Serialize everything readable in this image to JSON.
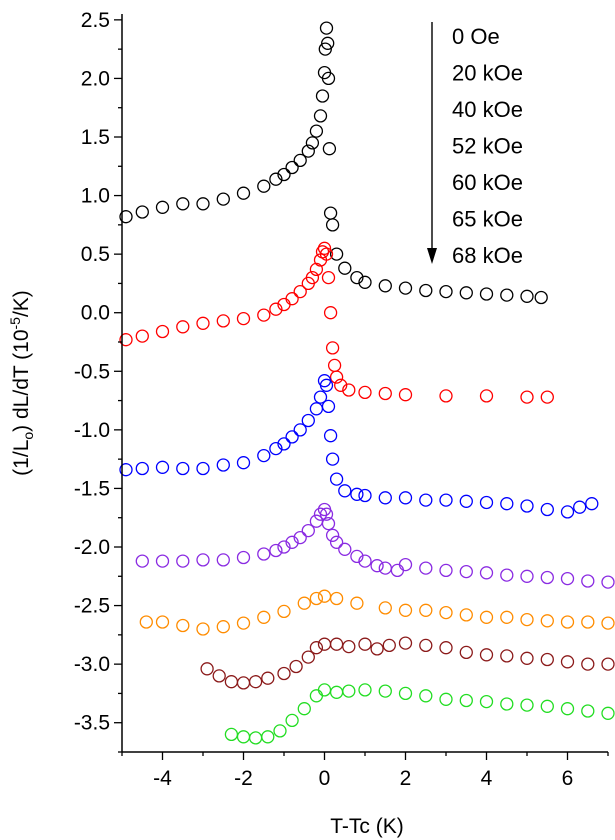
{
  "chart_data": {
    "type": "scatter",
    "xlabel": "T-Tc (K)",
    "ylabel": {
      "prefix": "(1/L",
      "sub": "o",
      "mid": ") dL/dT (10",
      "sup": "-5",
      "suffix": "/K)"
    },
    "xlim": [
      -5,
      7
    ],
    "ylim": [
      -3.75,
      2.55
    ],
    "xticks": [
      -4,
      -2,
      0,
      2,
      4,
      6
    ],
    "xtick_labels": [
      "-4",
      "-2",
      "0",
      "2",
      "4",
      "6"
    ],
    "yticks": [
      -3.5,
      -3.0,
      -2.5,
      -2.0,
      -1.5,
      -1.0,
      -0.5,
      0.0,
      0.5,
      1.0,
      1.5,
      2.0,
      2.5
    ],
    "ytick_labels": [
      "-3.5",
      "-3.0",
      "-2.5",
      "-2.0",
      "-1.5",
      "-1.0",
      "-0.5",
      "0.0",
      "0.5",
      "1.0",
      "1.5",
      "2.0",
      "2.5"
    ],
    "marker": "open-circle",
    "legend": {
      "placement": "top-right",
      "arrow": "down"
    },
    "series": [
      {
        "name": "0 Oe",
        "color": "#000000",
        "points": [
          [
            -4.9,
            0.82
          ],
          [
            -4.5,
            0.86
          ],
          [
            -4.0,
            0.9
          ],
          [
            -3.5,
            0.93
          ],
          [
            -3.0,
            0.93
          ],
          [
            -2.5,
            0.97
          ],
          [
            -2.0,
            1.02
          ],
          [
            -1.5,
            1.08
          ],
          [
            -1.2,
            1.14
          ],
          [
            -1.0,
            1.18
          ],
          [
            -0.8,
            1.24
          ],
          [
            -0.6,
            1.3
          ],
          [
            -0.4,
            1.38
          ],
          [
            -0.3,
            1.45
          ],
          [
            -0.2,
            1.55
          ],
          [
            -0.1,
            1.68
          ],
          [
            -0.05,
            1.85
          ],
          [
            0.0,
            2.05
          ],
          [
            0.02,
            2.25
          ],
          [
            0.05,
            2.43
          ],
          [
            0.08,
            2.3
          ],
          [
            0.1,
            2.0
          ],
          [
            0.12,
            1.4
          ],
          [
            0.15,
            0.85
          ],
          [
            0.2,
            0.75
          ],
          [
            0.3,
            0.5
          ],
          [
            0.5,
            0.38
          ],
          [
            0.8,
            0.3
          ],
          [
            1.0,
            0.26
          ],
          [
            1.5,
            0.23
          ],
          [
            2.0,
            0.21
          ],
          [
            2.5,
            0.19
          ],
          [
            3.0,
            0.18
          ],
          [
            3.5,
            0.17
          ],
          [
            4.0,
            0.16
          ],
          [
            4.5,
            0.15
          ],
          [
            5.0,
            0.14
          ],
          [
            5.35,
            0.13
          ]
        ]
      },
      {
        "name": "20 kOe",
        "color": "#ff0000",
        "points": [
          [
            -4.9,
            -0.23
          ],
          [
            -4.5,
            -0.2
          ],
          [
            -4.0,
            -0.16
          ],
          [
            -3.5,
            -0.12
          ],
          [
            -3.0,
            -0.09
          ],
          [
            -2.5,
            -0.07
          ],
          [
            -2.0,
            -0.05
          ],
          [
            -1.5,
            -0.02
          ],
          [
            -1.2,
            0.03
          ],
          [
            -1.0,
            0.07
          ],
          [
            -0.8,
            0.12
          ],
          [
            -0.6,
            0.18
          ],
          [
            -0.4,
            0.25
          ],
          [
            -0.3,
            0.3
          ],
          [
            -0.2,
            0.37
          ],
          [
            -0.1,
            0.45
          ],
          [
            -0.05,
            0.52
          ],
          [
            0.0,
            0.55
          ],
          [
            0.05,
            0.5
          ],
          [
            0.1,
            0.3
          ],
          [
            0.15,
            0.0
          ],
          [
            0.2,
            -0.3
          ],
          [
            0.25,
            -0.45
          ],
          [
            0.3,
            -0.55
          ],
          [
            0.4,
            -0.62
          ],
          [
            0.6,
            -0.66
          ],
          [
            1.0,
            -0.68
          ],
          [
            1.5,
            -0.69
          ],
          [
            2.0,
            -0.7
          ],
          [
            3.0,
            -0.71
          ],
          [
            4.0,
            -0.71
          ],
          [
            5.0,
            -0.72
          ],
          [
            5.5,
            -0.72
          ]
        ]
      },
      {
        "name": "40 kOe",
        "color": "#0000ff",
        "points": [
          [
            -4.9,
            -1.34
          ],
          [
            -4.5,
            -1.33
          ],
          [
            -4.0,
            -1.32
          ],
          [
            -3.5,
            -1.33
          ],
          [
            -3.0,
            -1.33
          ],
          [
            -2.5,
            -1.3
          ],
          [
            -2.0,
            -1.28
          ],
          [
            -1.5,
            -1.22
          ],
          [
            -1.2,
            -1.16
          ],
          [
            -1.0,
            -1.12
          ],
          [
            -0.8,
            -1.06
          ],
          [
            -0.6,
            -1.0
          ],
          [
            -0.4,
            -0.92
          ],
          [
            -0.2,
            -0.82
          ],
          [
            -0.1,
            -0.72
          ],
          [
            0.0,
            -0.58
          ],
          [
            0.05,
            -0.62
          ],
          [
            0.1,
            -0.8
          ],
          [
            0.15,
            -1.05
          ],
          [
            0.2,
            -1.25
          ],
          [
            0.3,
            -1.42
          ],
          [
            0.5,
            -1.52
          ],
          [
            0.8,
            -1.55
          ],
          [
            1.0,
            -1.56
          ],
          [
            1.5,
            -1.58
          ],
          [
            2.0,
            -1.58
          ],
          [
            2.5,
            -1.6
          ],
          [
            3.0,
            -1.6
          ],
          [
            3.5,
            -1.61
          ],
          [
            4.0,
            -1.62
          ],
          [
            4.5,
            -1.63
          ],
          [
            5.0,
            -1.65
          ],
          [
            5.5,
            -1.68
          ],
          [
            6.0,
            -1.7
          ],
          [
            6.3,
            -1.66
          ],
          [
            6.6,
            -1.63
          ]
        ]
      },
      {
        "name": "52 kOe",
        "color": "#8a2be2",
        "points": [
          [
            -4.5,
            -2.12
          ],
          [
            -4.0,
            -2.12
          ],
          [
            -3.5,
            -2.12
          ],
          [
            -3.0,
            -2.11
          ],
          [
            -2.5,
            -2.11
          ],
          [
            -2.0,
            -2.09
          ],
          [
            -1.5,
            -2.06
          ],
          [
            -1.2,
            -2.03
          ],
          [
            -1.0,
            -2.0
          ],
          [
            -0.8,
            -1.96
          ],
          [
            -0.6,
            -1.92
          ],
          [
            -0.4,
            -1.86
          ],
          [
            -0.2,
            -1.78
          ],
          [
            -0.1,
            -1.72
          ],
          [
            0.0,
            -1.68
          ],
          [
            0.05,
            -1.72
          ],
          [
            0.1,
            -1.8
          ],
          [
            0.2,
            -1.9
          ],
          [
            0.3,
            -1.96
          ],
          [
            0.5,
            -2.02
          ],
          [
            0.8,
            -2.08
          ],
          [
            1.0,
            -2.12
          ],
          [
            1.3,
            -2.16
          ],
          [
            1.5,
            -2.18
          ],
          [
            1.8,
            -2.2
          ],
          [
            2.0,
            -2.15
          ],
          [
            2.5,
            -2.18
          ],
          [
            3.0,
            -2.2
          ],
          [
            3.5,
            -2.21
          ],
          [
            4.0,
            -2.22
          ],
          [
            4.5,
            -2.24
          ],
          [
            5.0,
            -2.25
          ],
          [
            5.5,
            -2.26
          ],
          [
            6.0,
            -2.27
          ],
          [
            6.5,
            -2.29
          ],
          [
            7.0,
            -2.3
          ]
        ]
      },
      {
        "name": "60 kOe",
        "color": "#ff8c00",
        "points": [
          [
            -4.4,
            -2.64
          ],
          [
            -4.0,
            -2.64
          ],
          [
            -3.5,
            -2.67
          ],
          [
            -3.0,
            -2.7
          ],
          [
            -2.5,
            -2.68
          ],
          [
            -2.0,
            -2.65
          ],
          [
            -1.5,
            -2.6
          ],
          [
            -1.0,
            -2.55
          ],
          [
            -0.5,
            -2.48
          ],
          [
            -0.2,
            -2.44
          ],
          [
            0.0,
            -2.42
          ],
          [
            0.3,
            -2.44
          ],
          [
            0.8,
            -2.48
          ],
          [
            1.5,
            -2.52
          ],
          [
            2.0,
            -2.54
          ],
          [
            2.5,
            -2.54
          ],
          [
            3.0,
            -2.56
          ],
          [
            3.5,
            -2.58
          ],
          [
            4.0,
            -2.6
          ],
          [
            4.5,
            -2.6
          ],
          [
            5.0,
            -2.62
          ],
          [
            5.5,
            -2.63
          ],
          [
            6.0,
            -2.64
          ],
          [
            6.5,
            -2.64
          ],
          [
            7.0,
            -2.65
          ]
        ]
      },
      {
        "name": "65 kOe",
        "color": "#8b1a1a",
        "points": [
          [
            -2.9,
            -3.04
          ],
          [
            -2.6,
            -3.1
          ],
          [
            -2.3,
            -3.15
          ],
          [
            -2.0,
            -3.16
          ],
          [
            -1.7,
            -3.15
          ],
          [
            -1.4,
            -3.12
          ],
          [
            -1.0,
            -3.08
          ],
          [
            -0.7,
            -3.02
          ],
          [
            -0.4,
            -2.94
          ],
          [
            -0.2,
            -2.86
          ],
          [
            0.0,
            -2.83
          ],
          [
            0.3,
            -2.83
          ],
          [
            0.6,
            -2.85
          ],
          [
            1.0,
            -2.83
          ],
          [
            1.3,
            -2.87
          ],
          [
            1.6,
            -2.84
          ],
          [
            2.0,
            -2.82
          ],
          [
            2.5,
            -2.84
          ],
          [
            3.0,
            -2.86
          ],
          [
            3.5,
            -2.9
          ],
          [
            4.0,
            -2.92
          ],
          [
            4.5,
            -2.93
          ],
          [
            5.0,
            -2.95
          ],
          [
            5.5,
            -2.96
          ],
          [
            6.0,
            -2.98
          ],
          [
            6.5,
            -3.0
          ],
          [
            7.0,
            -3.0
          ]
        ]
      },
      {
        "name": "68 kOe",
        "color": "#22dd22",
        "points": [
          [
            -2.3,
            -3.6
          ],
          [
            -2.0,
            -3.62
          ],
          [
            -1.7,
            -3.63
          ],
          [
            -1.4,
            -3.62
          ],
          [
            -1.1,
            -3.57
          ],
          [
            -0.8,
            -3.48
          ],
          [
            -0.5,
            -3.38
          ],
          [
            -0.2,
            -3.27
          ],
          [
            0.0,
            -3.22
          ],
          [
            0.3,
            -3.24
          ],
          [
            0.6,
            -3.23
          ],
          [
            1.0,
            -3.22
          ],
          [
            1.5,
            -3.23
          ],
          [
            2.0,
            -3.25
          ],
          [
            2.5,
            -3.27
          ],
          [
            3.0,
            -3.3
          ],
          [
            3.5,
            -3.31
          ],
          [
            4.0,
            -3.32
          ],
          [
            4.5,
            -3.34
          ],
          [
            5.0,
            -3.35
          ],
          [
            5.5,
            -3.36
          ],
          [
            6.0,
            -3.38
          ],
          [
            6.5,
            -3.4
          ],
          [
            7.0,
            -3.42
          ]
        ]
      }
    ]
  }
}
